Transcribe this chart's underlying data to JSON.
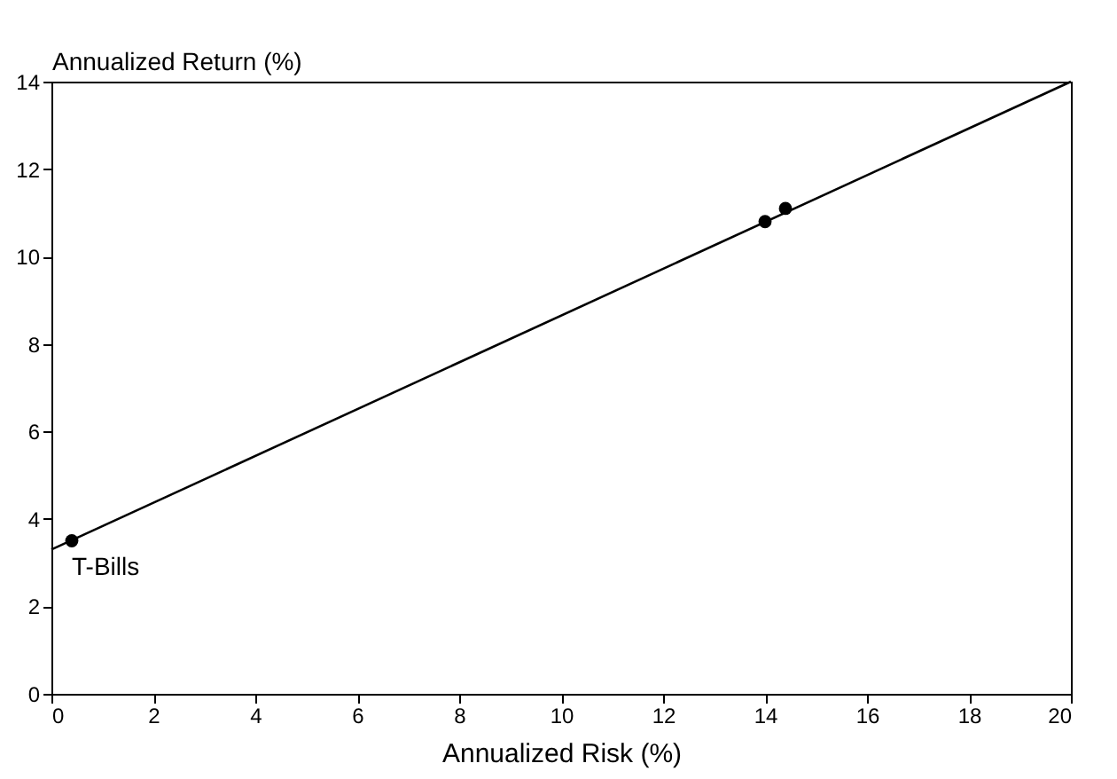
{
  "chart_data": {
    "type": "scatter",
    "xlabel": "Annualized Risk (%)",
    "ylabel": "Annualized Return (%)",
    "xlim": [
      0,
      20
    ],
    "ylim": [
      0,
      14
    ],
    "xticks": [
      0,
      2,
      4,
      6,
      8,
      10,
      12,
      14,
      16,
      18,
      20
    ],
    "yticks": [
      0,
      2,
      4,
      6,
      8,
      10,
      12,
      14
    ],
    "grid": false,
    "marker": "circle",
    "series": [
      {
        "type": "line",
        "marker": "none",
        "color": "#000000",
        "x": [
          0,
          20
        ],
        "values": [
          3.3,
          14
        ]
      },
      {
        "color": "#000000",
        "x": [
          0.4,
          14.0,
          14.4
        ],
        "values": [
          3.5,
          10.8,
          11.1
        ]
      }
    ],
    "annotations": [
      {
        "text": "T-Bills",
        "x": 0.4,
        "y": 3.5
      }
    ]
  }
}
